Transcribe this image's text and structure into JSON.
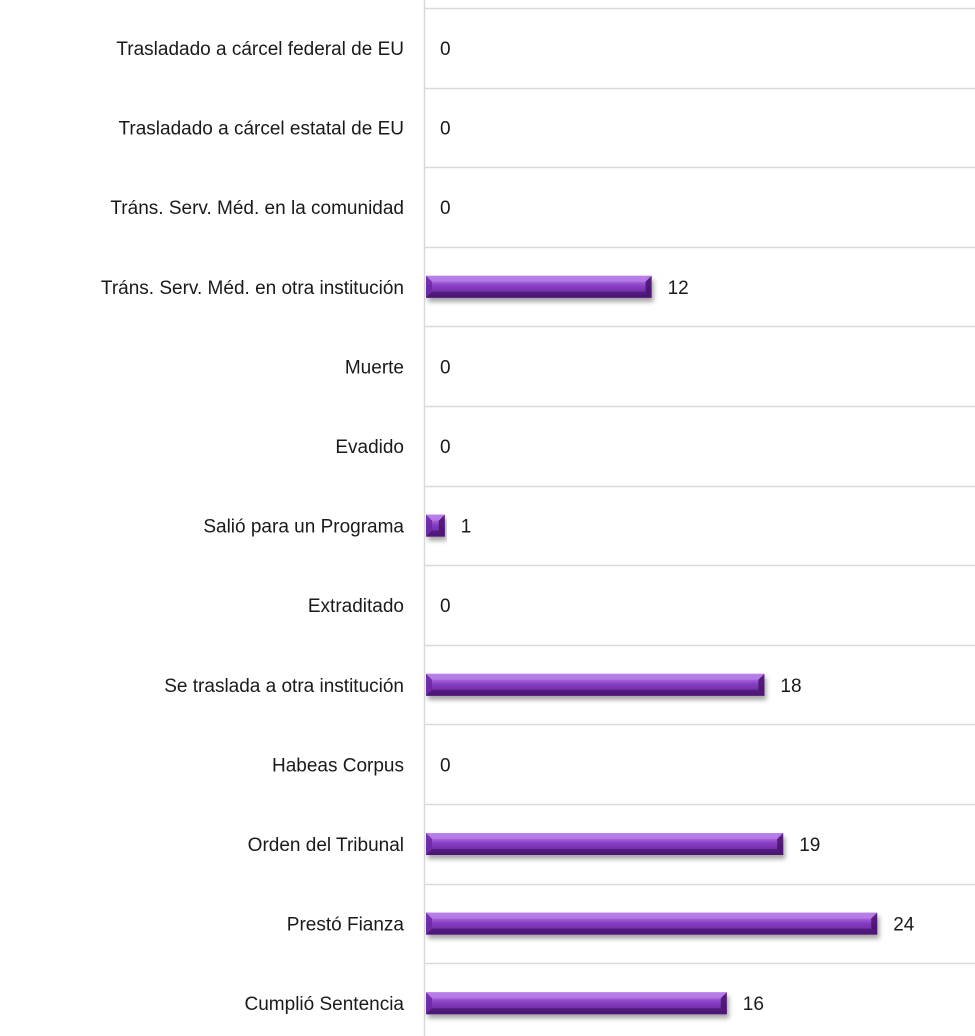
{
  "chart_data": {
    "type": "bar",
    "orientation": "horizontal",
    "title": "",
    "xlabel": "",
    "ylabel": "",
    "categories": [
      "Trasladado a cárcel federal de EU",
      "Trasladado a cárcel estatal de EU",
      "Tráns. Serv. Méd. en la comunidad",
      "Tráns. Serv. Méd. en otra institución",
      "Muerte",
      "Evadido",
      "Salió para un Programa",
      "Extraditado",
      "Se traslada a otra institución",
      "Habeas Corpus",
      "Orden del Tribunal",
      "Prestó Fianza",
      "Cumplió Sentencia"
    ],
    "values": [
      0,
      0,
      0,
      12,
      0,
      0,
      1,
      0,
      18,
      0,
      19,
      24,
      16
    ],
    "value_labels": [
      "0",
      "0",
      "0",
      "12",
      "0",
      "0",
      "1",
      "0",
      "18",
      "0",
      "19",
      "24",
      "16"
    ],
    "xlim": [
      0,
      30
    ],
    "grid": true,
    "legend": "none",
    "bar_color": "#8a3fc7",
    "bar_highlight": "#b57be8",
    "bar_shadow": "#4a1670",
    "grid_color": "#d9d9d9"
  }
}
